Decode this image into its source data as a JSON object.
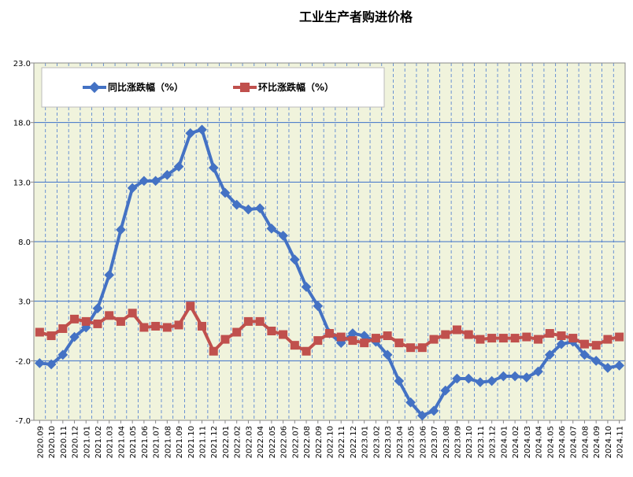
{
  "chart_data": {
    "type": "line",
    "title": "工业生产者购进价格",
    "xlabel": "",
    "ylabel": "",
    "ylim": [
      -7.0,
      23.0
    ],
    "yticks": [
      "23.0",
      "18.0",
      "13.0",
      "8.0",
      "3.0",
      "-2.0",
      "-7.0"
    ],
    "grid": true,
    "legend_position": "top-left",
    "colors": {
      "plot_bg": "#F0F3DC",
      "grid_h": "#3B6FC9",
      "grid_v": "#4A7BD0",
      "axis": "#888888",
      "series1": "#4472C4",
      "series2": "#C0504D"
    },
    "x": [
      "2020.09",
      "2020.10",
      "2020.11",
      "2020.12",
      "2021.01",
      "2021.02",
      "2021.03",
      "2021.04",
      "2021.05",
      "2021.06",
      "2021.07",
      "2021.08",
      "2021.09",
      "2021.10",
      "2021.11",
      "2021.12",
      "2022.01",
      "2022.02",
      "2022.03",
      "2022.04",
      "2022.05",
      "2022.06",
      "2022.07",
      "2022.08",
      "2022.09",
      "2022.10",
      "2022.11",
      "2022.12",
      "2023.01",
      "2023.02",
      "2023.03",
      "2023.04",
      "2023.05",
      "2023.06",
      "2023.07",
      "2023.08",
      "2023.09",
      "2023.10",
      "2023.11",
      "2023.12",
      "2024.01",
      "2024.02",
      "2024.03",
      "2024.04",
      "2024.05",
      "2024.06",
      "2024.07",
      "2024.08",
      "2024.09",
      "2024.10",
      "2024.11"
    ],
    "series": [
      {
        "name": "同比涨跌幅（%）",
        "marker": "diamond",
        "values": [
          -2.2,
          -2.3,
          -1.5,
          0.0,
          0.8,
          2.4,
          5.2,
          9.0,
          12.5,
          13.1,
          13.1,
          13.6,
          14.3,
          17.1,
          17.4,
          14.2,
          12.1,
          11.1,
          10.7,
          10.8,
          9.1,
          8.5,
          6.5,
          4.2,
          2.6,
          0.3,
          -0.5,
          0.3,
          0.1,
          -0.4,
          -1.5,
          -3.7,
          -5.5,
          -6.6,
          -6.2,
          -4.5,
          -3.5,
          -3.5,
          -3.8,
          -3.7,
          -3.3,
          -3.3,
          -3.4,
          -2.9,
          -1.5,
          -0.6,
          -0.4,
          -1.5,
          -2.0,
          -2.6,
          -2.4
        ]
      },
      {
        "name": "环比涨跌幅（%）",
        "marker": "square",
        "values": [
          0.4,
          0.1,
          0.7,
          1.5,
          1.3,
          1.1,
          1.8,
          1.3,
          2.0,
          0.8,
          0.9,
          0.8,
          1.0,
          2.6,
          0.9,
          -1.2,
          -0.2,
          0.4,
          1.3,
          1.3,
          0.5,
          0.2,
          -0.7,
          -1.2,
          -0.3,
          0.3,
          0.0,
          -0.3,
          -0.5,
          -0.1,
          0.1,
          -0.5,
          -0.9,
          -0.9,
          -0.2,
          0.2,
          0.6,
          0.2,
          -0.2,
          -0.1,
          -0.1,
          -0.1,
          0.0,
          -0.2,
          0.3,
          0.1,
          -0.1,
          -0.6,
          -0.7,
          -0.2,
          0.0
        ]
      }
    ]
  }
}
